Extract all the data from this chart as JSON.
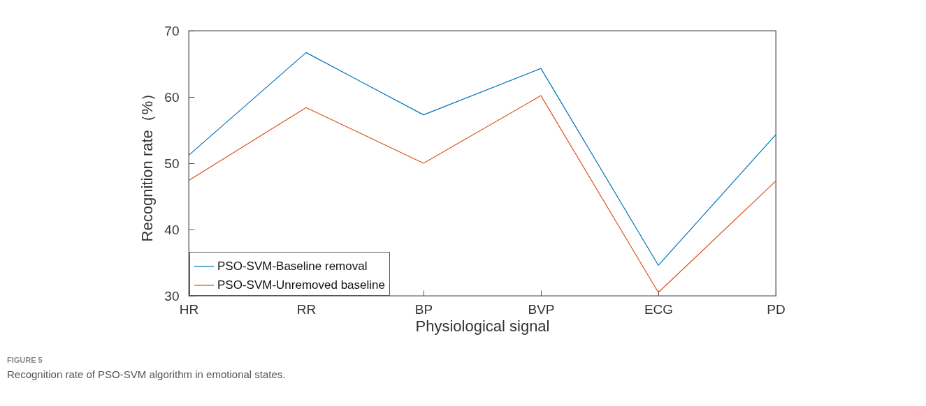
{
  "chart_data": {
    "type": "line",
    "xlabel": "Physiological signal",
    "ylabel": "Recognition rate（%）",
    "categories": [
      "HR",
      "RR",
      "BP",
      "BVP",
      "ECG",
      "PD"
    ],
    "series": [
      {
        "name": "PSO-SVM-Baseline removal",
        "color": "#0072bd",
        "values": [
          51.2,
          66.7,
          57.3,
          64.3,
          34.6,
          54.3
        ]
      },
      {
        "name": "PSO-SVM-Unremoved baseline",
        "color": "#d95319",
        "values": [
          47.4,
          58.4,
          50.0,
          60.2,
          30.5,
          47.3
        ]
      }
    ],
    "ylim": [
      30,
      70
    ],
    "yticks": [
      30,
      40,
      50,
      60,
      70
    ],
    "grid": false,
    "legend": "bottom left",
    "annotations": [
      "FIGURE 5",
      "Recognition rate of PSO-SVM algorithm in emotional states."
    ]
  }
}
